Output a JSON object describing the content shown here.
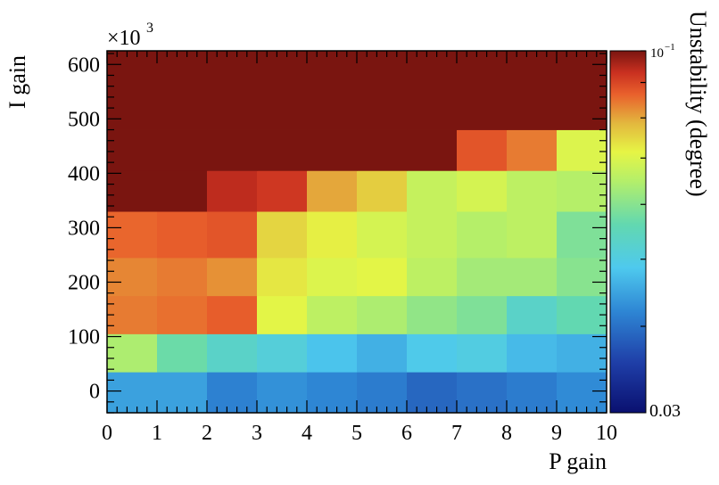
{
  "chart_data": {
    "type": "heatmap",
    "title": "",
    "xlabel": "P gain",
    "ylabel": "I gain",
    "y_multiplier": "×10",
    "y_multiplier_exp": "3",
    "colorbar_label": "Unstability (degree)",
    "colorbar_max_label": "10",
    "colorbar_max_exp": "−1",
    "colorbar_min_label": "0.03",
    "colorbar_range": [
      0.03,
      0.1
    ],
    "colorbar_scale": "log",
    "xlim": [
      0,
      10
    ],
    "ylim": [
      -40,
      625
    ],
    "x_ticks": [
      "0",
      "1",
      "2",
      "3",
      "4",
      "5",
      "6",
      "7",
      "8",
      "9",
      "10"
    ],
    "y_ticks": [
      "0",
      "100",
      "200",
      "300",
      "400",
      "500",
      "600"
    ],
    "x_bins": [
      0,
      1,
      2,
      3,
      4,
      5,
      6,
      7,
      8,
      9,
      10
    ],
    "y_bins": [
      -40,
      35,
      105,
      175,
      245,
      330,
      405,
      480,
      625
    ],
    "values": [
      [
        0.0445,
        0.0445,
        0.0415,
        0.043,
        0.042,
        0.041,
        0.039,
        0.04,
        0.041,
        0.0425
      ],
      [
        0.064,
        0.057,
        0.053,
        0.051,
        0.048,
        0.046,
        0.049,
        0.05,
        0.047,
        0.046
      ],
      [
        0.084,
        0.085,
        0.087,
        0.071,
        0.066,
        0.064,
        0.061,
        0.059,
        0.053,
        0.056
      ],
      [
        0.083,
        0.084,
        0.082,
        0.073,
        0.07,
        0.071,
        0.066,
        0.063,
        0.063,
        0.06
      ],
      [
        0.086,
        0.087,
        0.088,
        0.075,
        0.072,
        0.069,
        0.067,
        0.065,
        0.066,
        0.059
      ],
      [
        0.1,
        0.1,
        0.094,
        0.092,
        0.08,
        0.076,
        0.067,
        0.069,
        0.066,
        0.065
      ],
      [
        0.1,
        0.1,
        0.1,
        0.1,
        0.1,
        0.1,
        0.1,
        0.088,
        0.084,
        0.07
      ],
      [
        0.1,
        0.1,
        0.1,
        0.1,
        0.1,
        0.1,
        0.1,
        0.1,
        0.1,
        0.1
      ]
    ]
  }
}
